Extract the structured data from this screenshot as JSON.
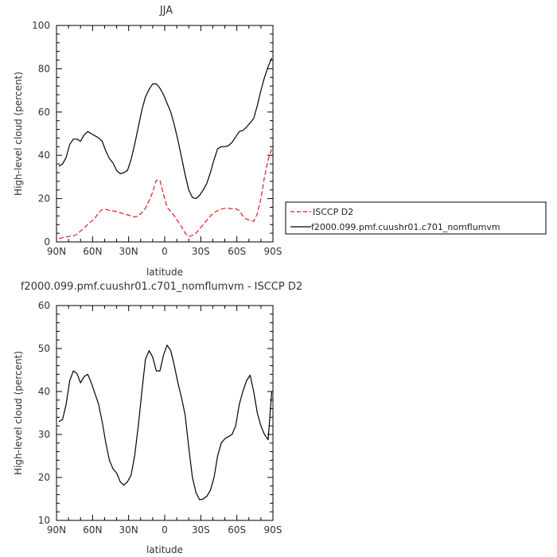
{
  "chart_data": [
    {
      "type": "line",
      "title": "JJA",
      "xlabel": "latitude",
      "ylabel": "High-level cloud (percent)",
      "xlim": [
        90,
        -90
      ],
      "ylim": [
        0,
        100
      ],
      "x_ticks": [
        90,
        60,
        30,
        0,
        -30,
        -60,
        -90
      ],
      "x_tick_labels": [
        "90N",
        "60N",
        "30N",
        "0",
        "30S",
        "60S",
        "90S"
      ],
      "y_ticks": [
        0,
        20,
        40,
        60,
        80,
        100
      ],
      "y_tick_labels": [
        "0",
        "20",
        "40",
        "60",
        "80",
        "100"
      ],
      "legend_position": "right",
      "series": [
        {
          "name": "ISCCP D2",
          "color": "#e41a1c",
          "style": "dashed",
          "x": [
            88,
            85,
            82,
            79,
            76,
            73,
            70,
            67,
            64,
            61,
            58,
            55,
            52,
            49,
            46,
            43,
            40,
            37,
            34,
            31,
            28,
            25,
            22,
            19,
            16,
            13,
            10,
            7,
            4,
            1,
            -2,
            -5,
            -8,
            -11,
            -14,
            -17,
            -20,
            -23,
            -26,
            -29,
            -32,
            -35,
            -38,
            -41,
            -44,
            -47,
            -50,
            -53,
            -56,
            -59,
            -62,
            -65,
            -68,
            -71,
            -74,
            -77,
            -80,
            -83,
            -86,
            -89
          ],
          "values": [
            1.5,
            2,
            2.3,
            2.6,
            2.8,
            3.5,
            5,
            6.5,
            8,
            9.5,
            11,
            13.5,
            15,
            15,
            14.6,
            14.3,
            14,
            13.5,
            13,
            12.5,
            12,
            11.5,
            12,
            13.5,
            15.5,
            19,
            23,
            28.5,
            28.5,
            22,
            16,
            14,
            12,
            9.5,
            7,
            4,
            2.5,
            3,
            4,
            6,
            8,
            10,
            12,
            13.5,
            14.5,
            15.2,
            15.5,
            15.5,
            15.3,
            15.3,
            14.5,
            12,
            10.5,
            10,
            9.5,
            13,
            20,
            30,
            38,
            43
          ]
        },
        {
          "name": "f2000.099.pmf.cuushr01.c701_nomflumvm",
          "color": "#000000",
          "style": "solid",
          "x": [
            88,
            85,
            82,
            79,
            76,
            73,
            70,
            67,
            64,
            61,
            58,
            55,
            52,
            49,
            46,
            43,
            40,
            37,
            34,
            31,
            28,
            25,
            22,
            19,
            16,
            13,
            10,
            7,
            4,
            1,
            -2,
            -5,
            -8,
            -11,
            -14,
            -17,
            -20,
            -23,
            -26,
            -29,
            -32,
            -35,
            -38,
            -41,
            -44,
            -47,
            -50,
            -53,
            -56,
            -59,
            -62,
            -65,
            -68,
            -71,
            -74,
            -77,
            -80,
            -83,
            -86,
            -89
          ],
          "values": [
            35,
            36,
            39,
            45,
            47.5,
            47.5,
            46.5,
            49.5,
            51,
            50,
            49,
            48,
            46.5,
            42,
            38.5,
            36.5,
            33,
            31.5,
            32,
            33,
            38,
            45,
            53,
            61,
            67,
            70.5,
            73,
            73,
            71,
            68,
            64,
            60,
            54,
            47,
            39,
            31,
            24,
            20.5,
            20,
            21.5,
            24,
            27,
            32,
            38,
            43,
            44,
            44,
            44.5,
            46,
            48.5,
            51,
            51.5,
            53,
            55,
            57,
            63,
            70,
            76,
            81,
            85
          ]
        }
      ]
    },
    {
      "type": "line",
      "title": "f2000.099.pmf.cuushr01.c701_nomflumvm - ISCCP D2",
      "xlabel": "latitude",
      "ylabel": "High-level cloud (percent)",
      "xlim": [
        90,
        -90
      ],
      "ylim": [
        10,
        60
      ],
      "x_ticks": [
        90,
        60,
        30,
        0,
        -30,
        -60,
        -90
      ],
      "x_tick_labels": [
        "90N",
        "60N",
        "30N",
        "0",
        "30S",
        "60S",
        "90S"
      ],
      "y_ticks": [
        10,
        20,
        30,
        40,
        50,
        60
      ],
      "y_tick_labels": [
        "10",
        "20",
        "30",
        "40",
        "50",
        "60"
      ],
      "series": [
        {
          "color": "#000000",
          "style": "solid",
          "x": [
            88,
            85,
            82,
            79,
            76,
            73,
            70,
            67,
            64,
            61,
            58,
            55,
            52,
            49,
            46,
            43,
            40,
            37,
            34,
            31,
            28,
            25,
            22,
            19,
            16,
            13,
            10,
            7,
            4,
            1,
            -2,
            -5,
            -8,
            -11,
            -14,
            -17,
            -20,
            -23,
            -26,
            -29,
            -32,
            -35,
            -38,
            -41,
            -44,
            -47,
            -50,
            -53,
            -56,
            -59,
            -62,
            -65,
            -68,
            -71,
            -74,
            -77,
            -80,
            -83,
            -86,
            -89
          ],
          "values": [
            33,
            33.5,
            37,
            42.5,
            44.8,
            44.2,
            42,
            43.5,
            44,
            42,
            39.5,
            37,
            33,
            28,
            24,
            22,
            21,
            19,
            18.2,
            19,
            20.5,
            25,
            32,
            40,
            47.5,
            49.5,
            48,
            44.8,
            44.8,
            48.5,
            50.8,
            49.5,
            46,
            42,
            38.5,
            34.5,
            27,
            20,
            16.5,
            14.8,
            15,
            15.6,
            17,
            20,
            25,
            28,
            29,
            29.5,
            30,
            32,
            37,
            40,
            42.5,
            43.8,
            40,
            35,
            32,
            30,
            28.8,
            40
          ]
        }
      ]
    }
  ]
}
